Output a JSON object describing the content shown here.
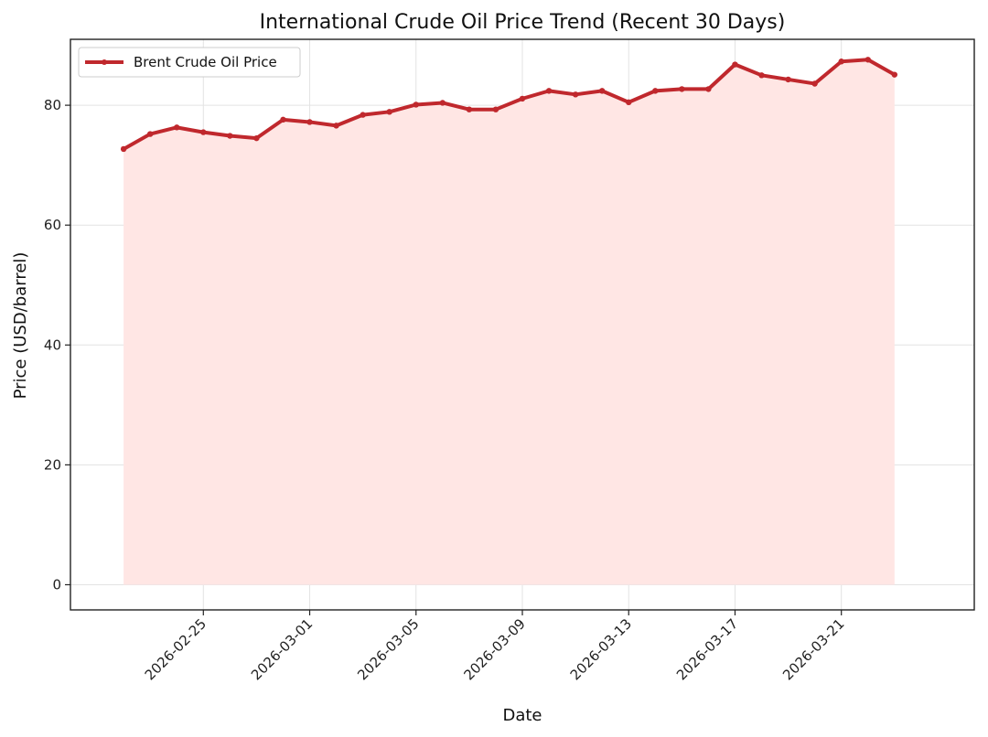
{
  "chart_data": {
    "type": "area",
    "title": "International Crude Oil Price Trend (Recent 30 Days)",
    "xlabel": "Date",
    "ylabel": "Price (USD/barrel)",
    "ylim": [
      -4.2,
      91
    ],
    "xlim": [
      "2026-02-20",
      "2026-03-26"
    ],
    "grid": true,
    "legend_position": "top-left",
    "x_tick_labels": [
      "2026-02-25",
      "2026-03-01",
      "2026-03-05",
      "2026-03-09",
      "2026-03-13",
      "2026-03-17",
      "2026-03-21"
    ],
    "y_tick_labels": [
      "0",
      "20",
      "40",
      "60",
      "80"
    ],
    "x": [
      "2026-02-22",
      "2026-02-23",
      "2026-02-24",
      "2026-02-25",
      "2026-02-26",
      "2026-02-27",
      "2026-02-28",
      "2026-03-01",
      "2026-03-02",
      "2026-03-03",
      "2026-03-04",
      "2026-03-05",
      "2026-03-06",
      "2026-03-07",
      "2026-03-08",
      "2026-03-09",
      "2026-03-10",
      "2026-03-11",
      "2026-03-12",
      "2026-03-13",
      "2026-03-14",
      "2026-03-15",
      "2026-03-16",
      "2026-03-17",
      "2026-03-18",
      "2026-03-19",
      "2026-03-20",
      "2026-03-21",
      "2026-03-22",
      "2026-03-23"
    ],
    "series": [
      {
        "name": "Brent Crude Oil Price",
        "color": "#c0282d",
        "fill_color": "#ffe6e4",
        "values": [
          72.7,
          75.2,
          76.3,
          75.5,
          74.9,
          74.5,
          77.6,
          77.2,
          76.6,
          78.4,
          78.9,
          80.1,
          80.4,
          79.3,
          79.3,
          81.1,
          82.4,
          81.8,
          82.4,
          80.5,
          82.4,
          82.7,
          82.7,
          86.8,
          85.0,
          84.3,
          83.6,
          87.3,
          87.6,
          85.1
        ]
      }
    ]
  }
}
